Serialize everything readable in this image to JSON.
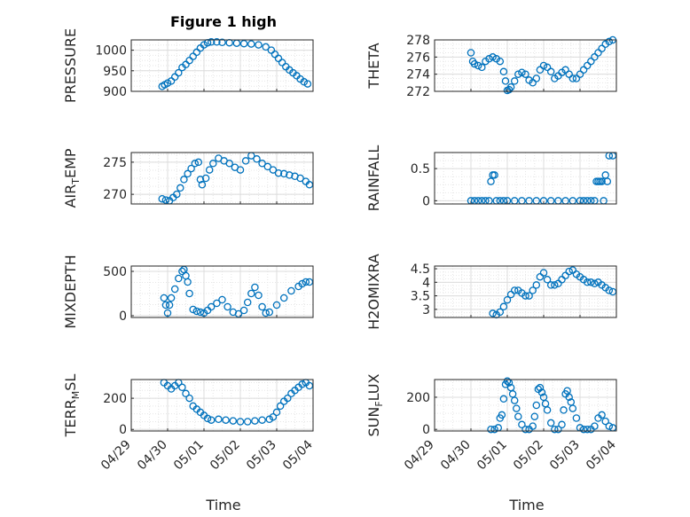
{
  "figure": {
    "title": "Figure 1 high",
    "xlabel": "Time"
  },
  "style": {
    "marker_color": "#0072BD"
  },
  "chart_data": [
    {
      "type": "scatter",
      "panel": "PRESSURE",
      "ylabel": "PRESSURE",
      "ylim": [
        900,
        1025
      ],
      "yticks": [
        900,
        950,
        1000
      ],
      "ytick_labels": [
        "900",
        "950",
        "1000"
      ],
      "xtick_labels": [],
      "grid": true,
      "x": [
        0.85,
        0.92,
        1.0,
        1.1,
        1.2,
        1.3,
        1.4,
        1.5,
        1.6,
        1.7,
        1.8,
        1.9,
        2.0,
        2.1,
        2.2,
        2.35,
        2.5,
        2.7,
        2.9,
        3.1,
        3.3,
        3.5,
        3.7,
        3.85,
        3.95,
        4.05,
        4.15,
        4.25,
        4.35,
        4.45,
        4.55,
        4.65,
        4.75,
        4.85
      ],
      "y": [
        912,
        916,
        920,
        925,
        935,
        945,
        958,
        965,
        975,
        985,
        995,
        1005,
        1013,
        1018,
        1020,
        1020,
        1019,
        1018,
        1017,
        1016,
        1015,
        1013,
        1008,
        1000,
        990,
        980,
        970,
        960,
        952,
        945,
        938,
        930,
        923,
        918
      ]
    },
    {
      "type": "scatter",
      "panel": "THETA",
      "ylabel": "THETA",
      "ylim": [
        272,
        278
      ],
      "yticks": [
        272,
        274,
        276,
        278
      ],
      "ytick_labels": [
        "272",
        "274",
        "276",
        "278"
      ],
      "xtick_labels": [],
      "grid": true,
      "x": [
        1.0,
        1.05,
        1.1,
        1.2,
        1.3,
        1.4,
        1.5,
        1.6,
        1.7,
        1.8,
        1.9,
        1.95,
        2.0,
        2.05,
        2.1,
        2.2,
        2.3,
        2.4,
        2.5,
        2.6,
        2.7,
        2.8,
        2.9,
        3.0,
        3.1,
        3.2,
        3.3,
        3.4,
        3.5,
        3.6,
        3.7,
        3.8,
        3.9,
        4.0,
        4.1,
        4.2,
        4.3,
        4.4,
        4.5,
        4.6,
        4.7,
        4.8,
        4.9
      ],
      "y": [
        276.5,
        275.5,
        275.2,
        275.0,
        274.8,
        275.5,
        275.8,
        276.0,
        275.8,
        275.5,
        274.3,
        273.2,
        272.1,
        272.2,
        272.5,
        273.2,
        274.0,
        274.2,
        274.0,
        273.3,
        273.0,
        273.5,
        274.5,
        275.0,
        274.8,
        274.3,
        273.5,
        273.8,
        274.2,
        274.5,
        274.0,
        273.5,
        273.5,
        274.0,
        274.5,
        275.0,
        275.5,
        276.0,
        276.5,
        277.0,
        277.5,
        277.8,
        278.0
      ]
    },
    {
      "type": "scatter",
      "panel": "AIR_TEMP",
      "ylabel": "AIR_TEMP",
      "ylim": [
        268.5,
        276.5
      ],
      "yticks": [
        270,
        275
      ],
      "ytick_labels": [
        "270",
        "275"
      ],
      "xtick_labels": [],
      "grid": true,
      "x": [
        0.85,
        0.95,
        1.05,
        1.15,
        1.25,
        1.35,
        1.45,
        1.55,
        1.65,
        1.75,
        1.85,
        1.9,
        1.95,
        2.05,
        2.15,
        2.25,
        2.4,
        2.55,
        2.7,
        2.85,
        3.0,
        3.15,
        3.3,
        3.45,
        3.6,
        3.75,
        3.9,
        4.05,
        4.2,
        4.35,
        4.5,
        4.65,
        4.8,
        4.9
      ],
      "y": [
        269.3,
        269.1,
        269.0,
        269.5,
        270.0,
        271.0,
        272.3,
        273.2,
        274.0,
        274.8,
        275.0,
        272.3,
        271.5,
        272.5,
        273.8,
        274.8,
        275.6,
        275.2,
        274.8,
        274.2,
        273.8,
        275.2,
        276.0,
        275.5,
        274.8,
        274.3,
        273.8,
        273.3,
        273.2,
        273.0,
        272.8,
        272.5,
        272.0,
        271.5
      ]
    },
    {
      "type": "scatter",
      "panel": "RAINFALL",
      "ylabel": "RAINFALL",
      "ylim": [
        -0.05,
        0.75
      ],
      "yticks": [
        0,
        0.5
      ],
      "ytick_labels": [
        "0",
        "0.5"
      ],
      "xtick_labels": [],
      "grid": true,
      "x": [
        1.0,
        1.1,
        1.2,
        1.3,
        1.4,
        1.5,
        1.55,
        1.6,
        1.65,
        1.7,
        1.8,
        1.9,
        2.0,
        2.2,
        2.4,
        2.6,
        2.8,
        3.0,
        3.2,
        3.4,
        3.6,
        3.8,
        4.0,
        4.1,
        4.2,
        4.3,
        4.4,
        4.45,
        4.5,
        4.55,
        4.6,
        4.65,
        4.7,
        4.75,
        4.8,
        4.9
      ],
      "y": [
        0,
        0,
        0,
        0,
        0,
        0,
        0.3,
        0.4,
        0.4,
        0,
        0,
        0,
        0,
        0,
        0,
        0,
        0,
        0,
        0,
        0,
        0,
        0,
        0,
        0,
        0,
        0,
        0,
        0.3,
        0.3,
        0.3,
        0.3,
        0,
        0.4,
        0.3,
        0.7,
        0.7
      ]
    },
    {
      "type": "scatter",
      "panel": "MIXDEPTH",
      "ylabel": "MIXDEPTH",
      "ylim": [
        -20,
        560
      ],
      "yticks": [
        0,
        500
      ],
      "ytick_labels": [
        "0",
        "500"
      ],
      "xtick_labels": [],
      "grid": true,
      "x": [
        0.9,
        0.95,
        1.0,
        1.05,
        1.1,
        1.2,
        1.3,
        1.4,
        1.45,
        1.5,
        1.55,
        1.6,
        1.7,
        1.8,
        1.9,
        2.0,
        2.1,
        2.2,
        2.35,
        2.5,
        2.65,
        2.8,
        2.95,
        3.1,
        3.2,
        3.3,
        3.4,
        3.5,
        3.6,
        3.7,
        3.8,
        4.0,
        4.2,
        4.4,
        4.6,
        4.7,
        4.8,
        4.9
      ],
      "y": [
        200,
        120,
        30,
        120,
        200,
        300,
        420,
        500,
        520,
        450,
        380,
        250,
        70,
        50,
        40,
        30,
        60,
        100,
        140,
        180,
        100,
        40,
        20,
        60,
        150,
        250,
        320,
        230,
        100,
        30,
        40,
        120,
        200,
        280,
        330,
        360,
        380,
        380
      ]
    },
    {
      "type": "scatter",
      "panel": "H2OMIXRA",
      "ylabel": "H2OMIXRA",
      "ylim": [
        2.7,
        4.6
      ],
      "yticks": [
        3,
        3.5,
        4,
        4.5
      ],
      "ytick_labels": [
        "3",
        "3.5",
        "4",
        "4.5"
      ],
      "xtick_labels": [],
      "grid": true,
      "x": [
        1.6,
        1.7,
        1.8,
        1.9,
        2.0,
        2.1,
        2.2,
        2.3,
        2.4,
        2.5,
        2.6,
        2.7,
        2.8,
        2.9,
        3.0,
        3.1,
        3.2,
        3.3,
        3.4,
        3.5,
        3.6,
        3.7,
        3.8,
        3.9,
        4.0,
        4.1,
        4.2,
        4.3,
        4.4,
        4.5,
        4.6,
        4.7,
        4.8,
        4.9
      ],
      "y": [
        2.85,
        2.8,
        2.9,
        3.1,
        3.35,
        3.55,
        3.7,
        3.7,
        3.6,
        3.5,
        3.5,
        3.7,
        3.9,
        4.2,
        4.35,
        4.1,
        3.9,
        3.9,
        3.95,
        4.1,
        4.25,
        4.4,
        4.45,
        4.3,
        4.2,
        4.1,
        4.0,
        4.0,
        3.95,
        4.0,
        3.9,
        3.8,
        3.7,
        3.65
      ]
    },
    {
      "type": "scatter",
      "panel": "TERR_MSL",
      "ylabel": "TERR_MSL",
      "ylim": [
        -10,
        320
      ],
      "yticks": [
        0,
        200
      ],
      "ytick_labels": [
        "0",
        "200"
      ],
      "xtick_labels": [
        "04/29",
        "04/30",
        "05/01",
        "05/02",
        "05/03",
        "05/04"
      ],
      "grid": true,
      "x": [
        0.9,
        1.0,
        1.1,
        1.2,
        1.3,
        1.4,
        1.5,
        1.6,
        1.7,
        1.8,
        1.9,
        2.0,
        2.1,
        2.2,
        2.4,
        2.6,
        2.8,
        3.0,
        3.2,
        3.4,
        3.6,
        3.8,
        3.9,
        4.0,
        4.1,
        4.2,
        4.3,
        4.4,
        4.5,
        4.6,
        4.7,
        4.8,
        4.9
      ],
      "y": [
        300,
        280,
        260,
        280,
        300,
        270,
        230,
        200,
        150,
        130,
        110,
        90,
        70,
        60,
        65,
        60,
        55,
        50,
        50,
        55,
        60,
        65,
        80,
        110,
        150,
        180,
        200,
        230,
        250,
        270,
        290,
        300,
        280
      ]
    },
    {
      "type": "scatter",
      "panel": "SUN_FLUX",
      "ylabel": "SUN_FLUX",
      "ylim": [
        -10,
        310
      ],
      "yticks": [
        0,
        200
      ],
      "ytick_labels": [
        "0",
        "200"
      ],
      "xtick_labels": [
        "04/29",
        "04/30",
        "05/01",
        "05/02",
        "05/03",
        "05/04"
      ],
      "grid": true,
      "x": [
        1.55,
        1.65,
        1.75,
        1.8,
        1.85,
        1.9,
        1.95,
        2.0,
        2.05,
        2.1,
        2.15,
        2.2,
        2.25,
        2.3,
        2.4,
        2.5,
        2.6,
        2.7,
        2.75,
        2.8,
        2.85,
        2.9,
        2.95,
        3.0,
        3.05,
        3.1,
        3.2,
        3.3,
        3.4,
        3.5,
        3.55,
        3.6,
        3.65,
        3.7,
        3.75,
        3.8,
        3.9,
        4.0,
        4.1,
        4.2,
        4.3,
        4.4,
        4.5,
        4.6,
        4.7,
        4.8,
        4.9
      ],
      "y": [
        0,
        0,
        10,
        70,
        90,
        190,
        280,
        300,
        290,
        260,
        220,
        180,
        130,
        80,
        30,
        0,
        0,
        20,
        80,
        150,
        250,
        260,
        230,
        200,
        160,
        120,
        40,
        0,
        0,
        30,
        120,
        220,
        240,
        200,
        170,
        130,
        70,
        10,
        0,
        0,
        0,
        20,
        70,
        90,
        50,
        20,
        10
      ]
    }
  ]
}
